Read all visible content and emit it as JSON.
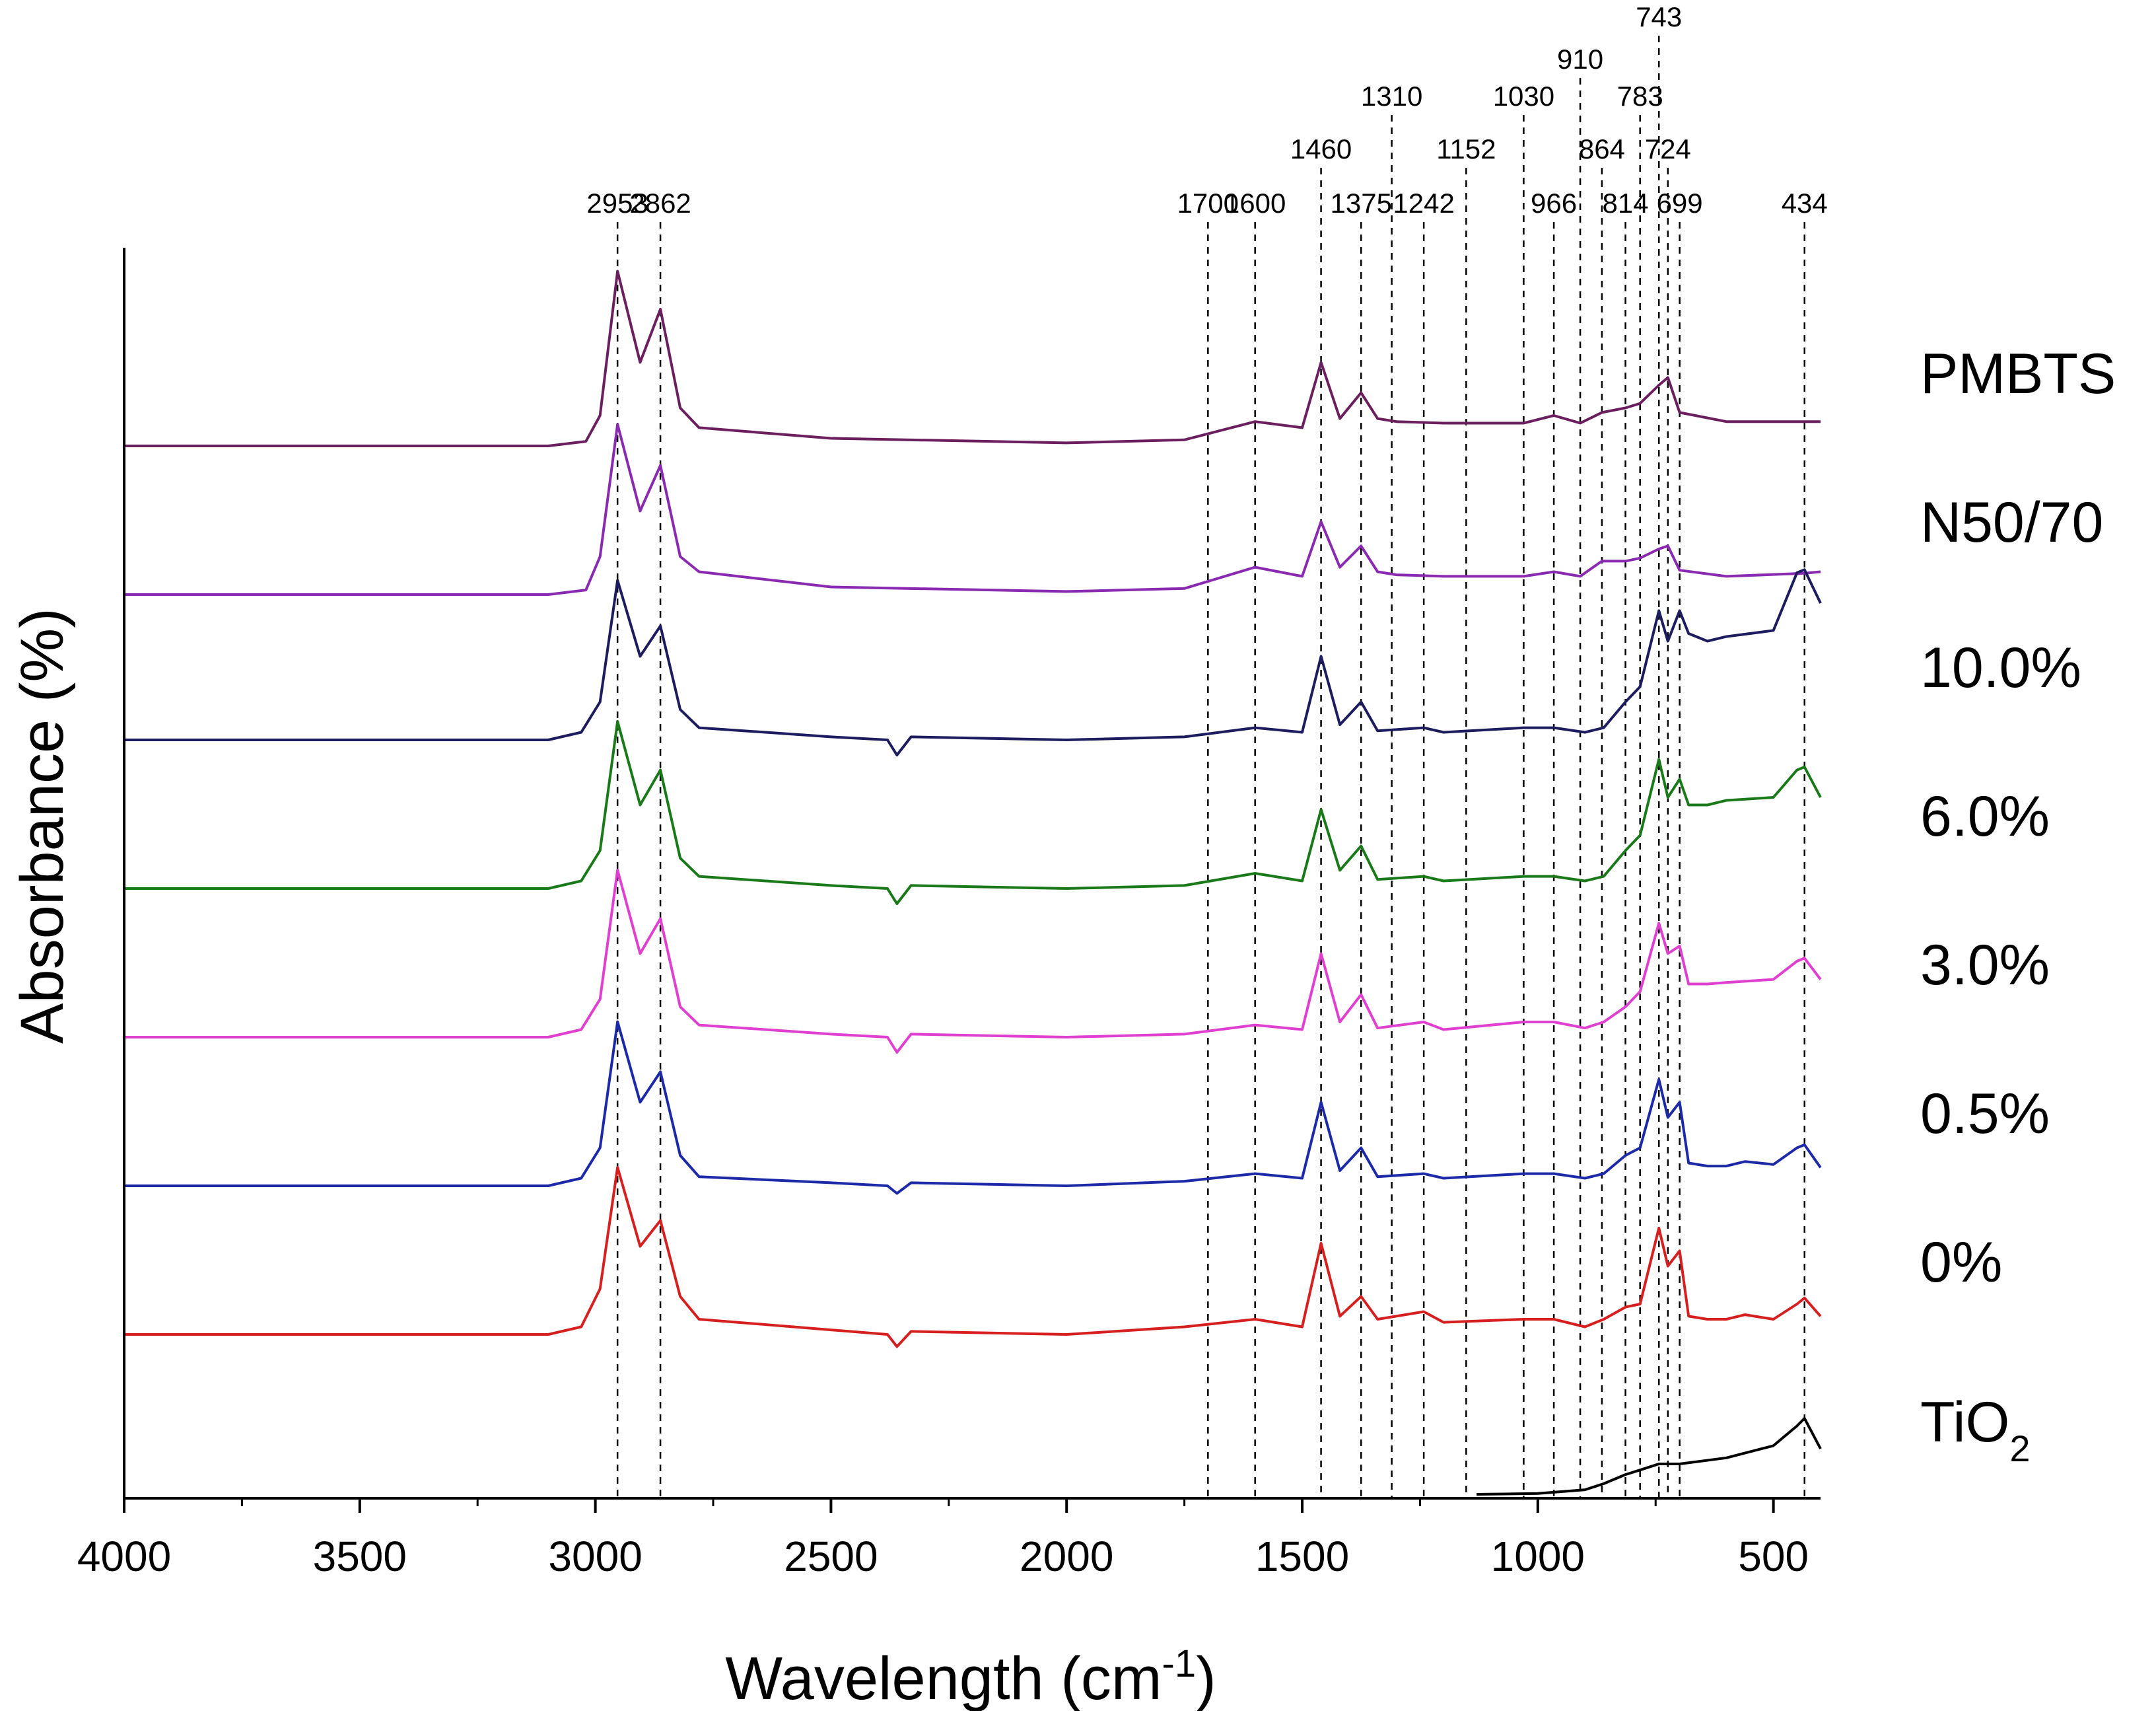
{
  "chart_data": {
    "type": "line",
    "title": "",
    "xlabel": "Wavelength (cm",
    "xlabel_sup": "-1",
    "xlabel_end": ")",
    "ylabel": "Absorbance (%)",
    "xlim": [
      4000,
      400
    ],
    "x_reversed": true,
    "y_ticks_shown": false,
    "x_ticks": [
      4000,
      3500,
      3000,
      2500,
      2000,
      1500,
      1000,
      500
    ],
    "x_tick_labels": [
      "4000",
      "3500",
      "3000",
      "2500",
      "2000",
      "1500",
      "1000",
      "500"
    ],
    "peak_markers": [
      {
        "x": 2953,
        "label": "2953",
        "level": 0
      },
      {
        "x": 2862,
        "label": "2862",
        "level": 0
      },
      {
        "x": 1700,
        "label": "1700",
        "level": 0
      },
      {
        "x": 1600,
        "label": "1600",
        "level": 0
      },
      {
        "x": 1460,
        "label": "1460",
        "level": 1
      },
      {
        "x": 1375,
        "label": "1375",
        "level": 0
      },
      {
        "x": 1310,
        "label": "1310",
        "level": 2
      },
      {
        "x": 1242,
        "label": "1242",
        "level": 0
      },
      {
        "x": 1152,
        "label": "1152",
        "level": 1
      },
      {
        "x": 1030,
        "label": "1030",
        "level": 2
      },
      {
        "x": 966,
        "label": "966",
        "level": 0
      },
      {
        "x": 910,
        "label": "910",
        "level": 3
      },
      {
        "x": 864,
        "label": "864",
        "level": 1
      },
      {
        "x": 814,
        "label": "814",
        "level": 0
      },
      {
        "x": 783,
        "label": "783",
        "level": 2
      },
      {
        "x": 743,
        "label": "743",
        "level": 4
      },
      {
        "x": 724,
        "label": "724",
        "level": 1
      },
      {
        "x": 699,
        "label": "699",
        "level": 0
      },
      {
        "x": 434,
        "label": "434",
        "level": 0
      }
    ],
    "series": [
      {
        "name": "PMBTS",
        "color": "#6b1f5e",
        "offset": 7,
        "pre_peak": 0,
        "mid_bump": 0.05,
        "tail": 0.1,
        "points": [
          [
            4000,
            0.0
          ],
          [
            3100,
            0.0
          ],
          [
            3020,
            0.03
          ],
          [
            2990,
            0.2
          ],
          [
            2953,
            1.15
          ],
          [
            2905,
            0.55
          ],
          [
            2862,
            0.9
          ],
          [
            2820,
            0.25
          ],
          [
            2780,
            0.12
          ],
          [
            2500,
            0.05
          ],
          [
            2000,
            0.02
          ],
          [
            1750,
            0.04
          ],
          [
            1600,
            0.16
          ],
          [
            1500,
            0.12
          ],
          [
            1460,
            0.55
          ],
          [
            1420,
            0.18
          ],
          [
            1375,
            0.35
          ],
          [
            1340,
            0.18
          ],
          [
            1300,
            0.16
          ],
          [
            1200,
            0.15
          ],
          [
            1030,
            0.15
          ],
          [
            966,
            0.2
          ],
          [
            910,
            0.15
          ],
          [
            864,
            0.22
          ],
          [
            814,
            0.25
          ],
          [
            783,
            0.28
          ],
          [
            743,
            0.4
          ],
          [
            724,
            0.45
          ],
          [
            699,
            0.22
          ],
          [
            600,
            0.16
          ],
          [
            434,
            0.16
          ],
          [
            400,
            0.16
          ]
        ]
      },
      {
        "name": "N50/70",
        "color": "#8a2ab0",
        "offset": 6,
        "pre_peak": 0,
        "mid_bump": 0.05,
        "tail": 0.1,
        "points": [
          [
            4000,
            0.0
          ],
          [
            3100,
            0.0
          ],
          [
            3020,
            0.03
          ],
          [
            2990,
            0.25
          ],
          [
            2953,
            1.12
          ],
          [
            2905,
            0.55
          ],
          [
            2862,
            0.85
          ],
          [
            2820,
            0.25
          ],
          [
            2780,
            0.15
          ],
          [
            2500,
            0.05
          ],
          [
            2000,
            0.02
          ],
          [
            1750,
            0.04
          ],
          [
            1600,
            0.18
          ],
          [
            1500,
            0.12
          ],
          [
            1460,
            0.48
          ],
          [
            1420,
            0.18
          ],
          [
            1375,
            0.32
          ],
          [
            1340,
            0.15
          ],
          [
            1300,
            0.13
          ],
          [
            1200,
            0.12
          ],
          [
            1030,
            0.12
          ],
          [
            966,
            0.15
          ],
          [
            910,
            0.12
          ],
          [
            864,
            0.22
          ],
          [
            814,
            0.22
          ],
          [
            783,
            0.24
          ],
          [
            743,
            0.3
          ],
          [
            724,
            0.32
          ],
          [
            699,
            0.16
          ],
          [
            600,
            0.12
          ],
          [
            434,
            0.14
          ],
          [
            400,
            0.15
          ]
        ]
      },
      {
        "name": "10.0%",
        "color": "#1c1c5e",
        "offset": 5,
        "pre_peak": 0,
        "mid_bump": 0,
        "tail": 0,
        "points": [
          [
            4000,
            0.0
          ],
          [
            3100,
            0.0
          ],
          [
            3030,
            0.05
          ],
          [
            2990,
            0.25
          ],
          [
            2953,
            1.05
          ],
          [
            2905,
            0.55
          ],
          [
            2862,
            0.75
          ],
          [
            2820,
            0.2
          ],
          [
            2780,
            0.08
          ],
          [
            2500,
            0.02
          ],
          [
            2380,
            0.0
          ],
          [
            2360,
            -0.1
          ],
          [
            2330,
            0.02
          ],
          [
            2000,
            0.0
          ],
          [
            1750,
            0.02
          ],
          [
            1600,
            0.08
          ],
          [
            1500,
            0.05
          ],
          [
            1460,
            0.55
          ],
          [
            1420,
            0.1
          ],
          [
            1375,
            0.25
          ],
          [
            1340,
            0.06
          ],
          [
            1242,
            0.08
          ],
          [
            1200,
            0.05
          ],
          [
            1030,
            0.08
          ],
          [
            966,
            0.08
          ],
          [
            900,
            0.05
          ],
          [
            860,
            0.08
          ],
          [
            814,
            0.25
          ],
          [
            783,
            0.35
          ],
          [
            743,
            0.85
          ],
          [
            724,
            0.65
          ],
          [
            699,
            0.85
          ],
          [
            680,
            0.7
          ],
          [
            640,
            0.65
          ],
          [
            600,
            0.68
          ],
          [
            500,
            0.72
          ],
          [
            450,
            1.1
          ],
          [
            434,
            1.12
          ],
          [
            400,
            0.9
          ]
        ]
      },
      {
        "name": "6.0%",
        "color": "#1a7a1a",
        "offset": 4,
        "pre_peak": 0,
        "mid_bump": 0,
        "tail": 0,
        "points": [
          [
            4000,
            0.0
          ],
          [
            3100,
            0.0
          ],
          [
            3030,
            0.05
          ],
          [
            2990,
            0.25
          ],
          [
            2953,
            1.1
          ],
          [
            2905,
            0.55
          ],
          [
            2862,
            0.78
          ],
          [
            2820,
            0.2
          ],
          [
            2780,
            0.08
          ],
          [
            2500,
            0.02
          ],
          [
            2380,
            0.0
          ],
          [
            2360,
            -0.1
          ],
          [
            2330,
            0.02
          ],
          [
            2000,
            0.0
          ],
          [
            1750,
            0.02
          ],
          [
            1600,
            0.1
          ],
          [
            1500,
            0.05
          ],
          [
            1460,
            0.52
          ],
          [
            1420,
            0.12
          ],
          [
            1375,
            0.28
          ],
          [
            1340,
            0.06
          ],
          [
            1242,
            0.08
          ],
          [
            1200,
            0.05
          ],
          [
            1030,
            0.08
          ],
          [
            966,
            0.08
          ],
          [
            900,
            0.05
          ],
          [
            860,
            0.08
          ],
          [
            814,
            0.25
          ],
          [
            783,
            0.35
          ],
          [
            743,
            0.85
          ],
          [
            724,
            0.6
          ],
          [
            699,
            0.72
          ],
          [
            680,
            0.55
          ],
          [
            640,
            0.55
          ],
          [
            600,
            0.58
          ],
          [
            500,
            0.6
          ],
          [
            450,
            0.78
          ],
          [
            434,
            0.8
          ],
          [
            400,
            0.6
          ]
        ]
      },
      {
        "name": "3.0%",
        "color": "#e040d0",
        "offset": 3,
        "pre_peak": 0,
        "mid_bump": 0,
        "tail": 0,
        "points": [
          [
            4000,
            0.0
          ],
          [
            3100,
            0.0
          ],
          [
            3030,
            0.05
          ],
          [
            2990,
            0.25
          ],
          [
            2953,
            1.1
          ],
          [
            2905,
            0.55
          ],
          [
            2862,
            0.78
          ],
          [
            2820,
            0.2
          ],
          [
            2780,
            0.08
          ],
          [
            2500,
            0.02
          ],
          [
            2380,
            0.0
          ],
          [
            2360,
            -0.1
          ],
          [
            2330,
            0.02
          ],
          [
            2000,
            0.0
          ],
          [
            1750,
            0.02
          ],
          [
            1600,
            0.08
          ],
          [
            1500,
            0.05
          ],
          [
            1460,
            0.55
          ],
          [
            1420,
            0.1
          ],
          [
            1375,
            0.28
          ],
          [
            1340,
            0.06
          ],
          [
            1242,
            0.1
          ],
          [
            1200,
            0.05
          ],
          [
            1030,
            0.1
          ],
          [
            966,
            0.1
          ],
          [
            900,
            0.06
          ],
          [
            860,
            0.1
          ],
          [
            814,
            0.2
          ],
          [
            783,
            0.3
          ],
          [
            743,
            0.75
          ],
          [
            724,
            0.55
          ],
          [
            699,
            0.6
          ],
          [
            680,
            0.35
          ],
          [
            640,
            0.35
          ],
          [
            600,
            0.36
          ],
          [
            500,
            0.38
          ],
          [
            450,
            0.5
          ],
          [
            434,
            0.52
          ],
          [
            400,
            0.38
          ]
        ]
      },
      {
        "name": "0.5%",
        "color": "#1d2aa8",
        "offset": 2,
        "pre_peak": 0,
        "mid_bump": 0,
        "tail": 0,
        "points": [
          [
            4000,
            0.0
          ],
          [
            3100,
            0.0
          ],
          [
            3030,
            0.05
          ],
          [
            2990,
            0.25
          ],
          [
            2953,
            1.08
          ],
          [
            2905,
            0.55
          ],
          [
            2862,
            0.75
          ],
          [
            2820,
            0.2
          ],
          [
            2780,
            0.06
          ],
          [
            2500,
            0.02
          ],
          [
            2380,
            0.0
          ],
          [
            2360,
            -0.05
          ],
          [
            2330,
            0.02
          ],
          [
            2000,
            0.0
          ],
          [
            1750,
            0.03
          ],
          [
            1600,
            0.08
          ],
          [
            1500,
            0.05
          ],
          [
            1460,
            0.55
          ],
          [
            1420,
            0.1
          ],
          [
            1375,
            0.25
          ],
          [
            1340,
            0.06
          ],
          [
            1242,
            0.08
          ],
          [
            1200,
            0.05
          ],
          [
            1030,
            0.08
          ],
          [
            966,
            0.08
          ],
          [
            900,
            0.05
          ],
          [
            860,
            0.08
          ],
          [
            814,
            0.2
          ],
          [
            783,
            0.25
          ],
          [
            743,
            0.7
          ],
          [
            724,
            0.45
          ],
          [
            699,
            0.55
          ],
          [
            680,
            0.15
          ],
          [
            640,
            0.13
          ],
          [
            600,
            0.13
          ],
          [
            560,
            0.16
          ],
          [
            500,
            0.14
          ],
          [
            450,
            0.25
          ],
          [
            434,
            0.27
          ],
          [
            400,
            0.12
          ]
        ]
      },
      {
        "name": "0%",
        "color": "#d62020",
        "offset": 1,
        "pre_peak": 0,
        "mid_bump": 0,
        "tail": 0,
        "points": [
          [
            4000,
            0.0
          ],
          [
            3100,
            0.0
          ],
          [
            3030,
            0.05
          ],
          [
            2990,
            0.3
          ],
          [
            2953,
            1.1
          ],
          [
            2905,
            0.58
          ],
          [
            2862,
            0.75
          ],
          [
            2820,
            0.25
          ],
          [
            2780,
            0.1
          ],
          [
            2500,
            0.03
          ],
          [
            2380,
            0.0
          ],
          [
            2360,
            -0.08
          ],
          [
            2330,
            0.02
          ],
          [
            2000,
            0.0
          ],
          [
            1750,
            0.05
          ],
          [
            1600,
            0.1
          ],
          [
            1500,
            0.05
          ],
          [
            1460,
            0.6
          ],
          [
            1420,
            0.12
          ],
          [
            1375,
            0.25
          ],
          [
            1340,
            0.1
          ],
          [
            1242,
            0.15
          ],
          [
            1200,
            0.08
          ],
          [
            1030,
            0.1
          ],
          [
            966,
            0.1
          ],
          [
            900,
            0.05
          ],
          [
            860,
            0.1
          ],
          [
            814,
            0.18
          ],
          [
            783,
            0.2
          ],
          [
            743,
            0.7
          ],
          [
            724,
            0.45
          ],
          [
            699,
            0.55
          ],
          [
            680,
            0.12
          ],
          [
            640,
            0.1
          ],
          [
            600,
            0.1
          ],
          [
            560,
            0.13
          ],
          [
            500,
            0.1
          ],
          [
            450,
            0.2
          ],
          [
            434,
            0.24
          ],
          [
            400,
            0.12
          ]
        ]
      },
      {
        "name": "TiO",
        "name_sub": "2",
        "color": "#000000",
        "offset": 0,
        "pre_peak": 0,
        "mid_bump": 0,
        "tail": 0,
        "points": [
          [
            1130,
            0.0
          ],
          [
            1000,
            0.005
          ],
          [
            900,
            0.03
          ],
          [
            860,
            0.07
          ],
          [
            814,
            0.13
          ],
          [
            783,
            0.16
          ],
          [
            743,
            0.2
          ],
          [
            724,
            0.2
          ],
          [
            699,
            0.2
          ],
          [
            600,
            0.24
          ],
          [
            500,
            0.32
          ],
          [
            450,
            0.45
          ],
          [
            434,
            0.5
          ],
          [
            400,
            0.3
          ]
        ]
      }
    ]
  }
}
